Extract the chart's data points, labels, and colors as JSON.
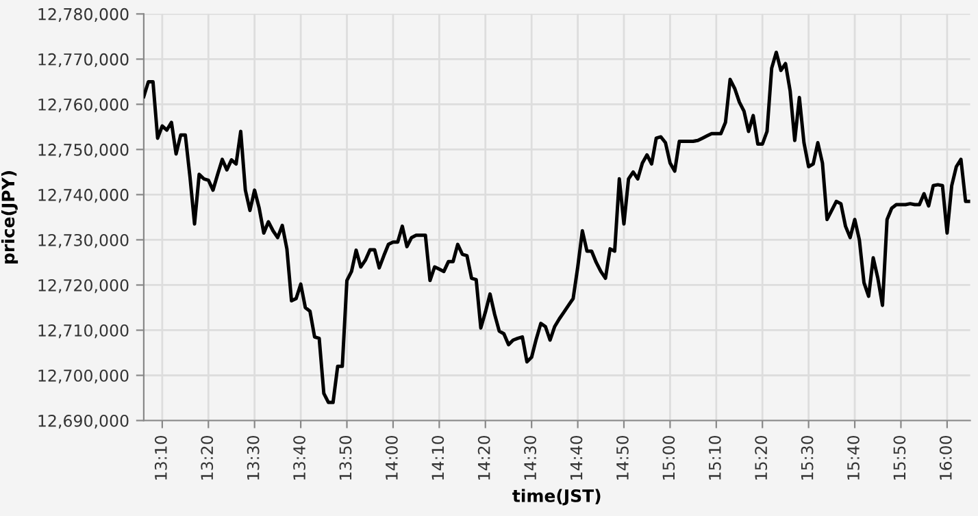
{
  "chart_data": {
    "type": "line",
    "xlabel": "time(JST)",
    "ylabel": "price(JPY)",
    "x": [
      13.1,
      13.1167,
      13.1333,
      13.15,
      13.1667,
      13.1833,
      13.2,
      13.2167,
      13.2333,
      13.25,
      13.2667,
      13.2833,
      13.3,
      13.3167,
      13.3333,
      13.35,
      13.3667,
      13.3833,
      13.4,
      13.4167,
      13.4333,
      13.45,
      13.4667,
      13.4833,
      13.5,
      13.5167,
      13.5333,
      13.55,
      13.5667,
      13.5833,
      13.6,
      13.6167,
      13.6333,
      13.65,
      13.6667,
      13.6833,
      13.7,
      13.7167,
      13.7333,
      13.75,
      13.7667,
      13.7833,
      13.8,
      13.8167,
      13.8333,
      13.85,
      13.8667,
      13.8833,
      13.9,
      13.9167,
      13.9333,
      13.95,
      13.9667,
      13.9833,
      14.0,
      14.0167,
      14.0333,
      14.05,
      14.0667,
      14.0833,
      14.1,
      14.1167,
      14.1333,
      14.15,
      14.1667,
      14.1833,
      14.2,
      14.2167,
      14.2333,
      14.25,
      14.2667,
      14.2833,
      14.3,
      14.3167,
      14.3333,
      14.35,
      14.3667,
      14.3833,
      14.4,
      14.4167,
      14.4333,
      14.45,
      14.4667,
      14.4833,
      14.5,
      14.5167,
      14.5333,
      14.55,
      14.5667,
      14.5833,
      14.6,
      14.6167,
      14.6333,
      14.65,
      14.6667,
      14.6833,
      14.7,
      14.7167,
      14.7333,
      14.75,
      14.7667,
      14.7833,
      14.8,
      14.8167,
      14.8333,
      14.85,
      14.8667,
      14.8833,
      14.9,
      14.9167,
      14.9333,
      14.95,
      14.9667,
      14.9833,
      15.0,
      15.0167,
      15.0333,
      15.05,
      15.0667,
      15.0833,
      15.1,
      15.1167,
      15.1333,
      15.15,
      15.1667,
      15.1833,
      15.2,
      15.2167,
      15.2333,
      15.25,
      15.2667,
      15.2833,
      15.3,
      15.3167,
      15.3333,
      15.35,
      15.3667,
      15.3833,
      15.4,
      15.4167,
      15.4333,
      15.45,
      15.4667,
      15.4833,
      15.5,
      15.5167,
      15.5333,
      15.55,
      15.5667,
      15.5833,
      15.6,
      15.6167,
      15.6333,
      15.65,
      15.6667,
      15.6833,
      15.7,
      15.7167,
      15.7333,
      15.75,
      15.7667,
      15.7833,
      15.8,
      15.8167,
      15.8333,
      15.85,
      15.8667,
      15.8833,
      15.9,
      15.9167,
      15.9333,
      15.95,
      15.9667,
      15.9833,
      16.0,
      16.0167,
      16.0333,
      16.05,
      16.0667,
      16.0833
    ],
    "values": [
      12761700,
      12765000,
      12765000,
      12752500,
      12755200,
      12754300,
      12756000,
      12749000,
      12753200,
      12753200,
      12744000,
      12733500,
      12744500,
      12743500,
      12743200,
      12741000,
      12744500,
      12747800,
      12745500,
      12747700,
      12746800,
      12754000,
      12741000,
      12736500,
      12741000,
      12737000,
      12731500,
      12734000,
      12732000,
      12730500,
      12733200,
      12728000,
      12716500,
      12717000,
      12720200,
      12715000,
      12714200,
      12708500,
      12708200,
      12696000,
      12694000,
      12694000,
      12702000,
      12702000,
      12721000,
      12723000,
      12727700,
      12724000,
      12725500,
      12727800,
      12727800,
      12723800,
      12726500,
      12729000,
      12729500,
      12729500,
      12733000,
      12728500,
      12730500,
      12731000,
      12731000,
      12731000,
      12721000,
      12724000,
      12723500,
      12723000,
      12725200,
      12725200,
      12729000,
      12726800,
      12726500,
      12721500,
      12721200,
      12710500,
      12714000,
      12718000,
      12713500,
      12709800,
      12709200,
      12706800,
      12707800,
      12708200,
      12708500,
      12703000,
      12704000,
      12708000,
      12711500,
      12710800,
      12707800,
      12710800,
      12712500,
      12714000,
      12715500,
      12717000,
      12724000,
      12732000,
      12727500,
      12727500,
      12725000,
      12723000,
      12721500,
      12728000,
      12727500,
      12743500,
      12733500,
      12743500,
      12745000,
      12743500,
      12747000,
      12748800,
      12746800,
      12752500,
      12752800,
      12751500,
      12747000,
      12745200,
      12751800,
      12751800,
      12751800,
      12751800,
      12752000,
      12752500,
      12753000,
      12753500,
      12753500,
      12753500,
      12756000,
      12765500,
      12763500,
      12760500,
      12758500,
      12754000,
      12757500,
      12751200,
      12751200,
      12754000,
      12768000,
      12771500,
      12767500,
      12769000,
      12763000,
      12752000,
      12761500,
      12751500,
      12746200,
      12746800,
      12751500,
      12747000,
      12734500,
      12736500,
      12738500,
      12738000,
      12733000,
      12730500,
      12734500,
      12730000,
      12720500,
      12717500,
      12726000,
      12721500,
      12715500,
      12734500,
      12737000,
      12737800,
      12737800,
      12737800,
      12738000,
      12737800,
      12737800,
      12740200,
      12737500,
      12742000,
      12742200,
      12742000,
      12731500,
      12742000,
      12746200,
      12747800,
      12738500,
      12738500
    ],
    "color": "#000000",
    "line_style": "solid",
    "marker": "none",
    "grid": true,
    "legend": false,
    "xlim": [
      13.1,
      16.0833
    ],
    "xticks": [
      {
        "value": 13.1667,
        "label": "13:10"
      },
      {
        "value": 13.3333,
        "label": "13:20"
      },
      {
        "value": 13.5,
        "label": "13:30"
      },
      {
        "value": 13.6667,
        "label": "13:40"
      },
      {
        "value": 13.8333,
        "label": "13:50"
      },
      {
        "value": 14.0,
        "label": "14:00"
      },
      {
        "value": 14.1667,
        "label": "14:10"
      },
      {
        "value": 14.3333,
        "label": "14:20"
      },
      {
        "value": 14.5,
        "label": "14:30"
      },
      {
        "value": 14.6667,
        "label": "14:40"
      },
      {
        "value": 14.8333,
        "label": "14:50"
      },
      {
        "value": 15.0,
        "label": "15:00"
      },
      {
        "value": 15.1667,
        "label": "15:10"
      },
      {
        "value": 15.3333,
        "label": "15:20"
      },
      {
        "value": 15.5,
        "label": "15:30"
      },
      {
        "value": 15.6667,
        "label": "15:40"
      },
      {
        "value": 15.8333,
        "label": "15:50"
      },
      {
        "value": 16.0,
        "label": "16:00"
      }
    ],
    "ylim": [
      12690000,
      12780000
    ],
    "yticks": [
      {
        "value": 12690000,
        "label": "12,690,000"
      },
      {
        "value": 12700000,
        "label": "12,700,000"
      },
      {
        "value": 12710000,
        "label": "12,710,000"
      },
      {
        "value": 12720000,
        "label": "12,720,000"
      },
      {
        "value": 12730000,
        "label": "12,730,000"
      },
      {
        "value": 12740000,
        "label": "12,740,000"
      },
      {
        "value": 12750000,
        "label": "12,750,000"
      },
      {
        "value": 12760000,
        "label": "12,760,000"
      },
      {
        "value": 12770000,
        "label": "12,770,000"
      },
      {
        "value": 12780000,
        "label": "12,780,000"
      }
    ]
  }
}
